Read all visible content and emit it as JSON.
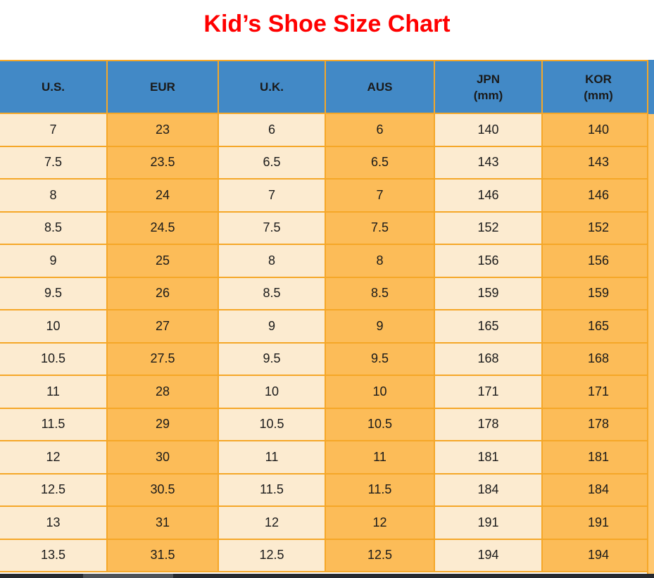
{
  "title": "Kid’s Shoe Size Chart",
  "table": {
    "headers": [
      {
        "label": "U.S.",
        "sub": ""
      },
      {
        "label": "EUR",
        "sub": ""
      },
      {
        "label": "U.K.",
        "sub": ""
      },
      {
        "label": "AUS",
        "sub": ""
      },
      {
        "label": "JPN",
        "sub": "(mm)"
      },
      {
        "label": "KOR",
        "sub": "(mm)"
      }
    ]
  },
  "chart_data": {
    "type": "table",
    "title": "Kid's Shoe Size Chart",
    "columns": [
      "U.S.",
      "EUR",
      "U.K.",
      "AUS",
      "JPN (mm)",
      "KOR (mm)"
    ],
    "rows": [
      [
        "7",
        "23",
        "6",
        "6",
        "140",
        "140"
      ],
      [
        "7.5",
        "23.5",
        "6.5",
        "6.5",
        "143",
        "143"
      ],
      [
        "8",
        "24",
        "7",
        "7",
        "146",
        "146"
      ],
      [
        "8.5",
        "24.5",
        "7.5",
        "7.5",
        "152",
        "152"
      ],
      [
        "9",
        "25",
        "8",
        "8",
        "156",
        "156"
      ],
      [
        "9.5",
        "26",
        "8.5",
        "8.5",
        "159",
        "159"
      ],
      [
        "10",
        "27",
        "9",
        "9",
        "165",
        "165"
      ],
      [
        "10.5",
        "27.5",
        "9.5",
        "9.5",
        "168",
        "168"
      ],
      [
        "11",
        "28",
        "10",
        "10",
        "171",
        "171"
      ],
      [
        "11.5",
        "29",
        "10.5",
        "10.5",
        "178",
        "178"
      ],
      [
        "12",
        "30",
        "11",
        "11",
        "181",
        "181"
      ],
      [
        "12.5",
        "30.5",
        "11.5",
        "11.5",
        "184",
        "184"
      ],
      [
        "13",
        "31",
        "12",
        "12",
        "191",
        "191"
      ],
      [
        "13.5",
        "31.5",
        "12.5",
        "12.5",
        "194",
        "194"
      ]
    ]
  },
  "colors": {
    "title_red": "#FF0000",
    "header_blue": "#4289C6",
    "cell_cream": "#FCEBD0",
    "cell_orange": "#FCBC58",
    "grid_orange": "#F5A728",
    "bottom_bar": "#26292E",
    "bottom_bar_thumb": "#4E5257"
  }
}
